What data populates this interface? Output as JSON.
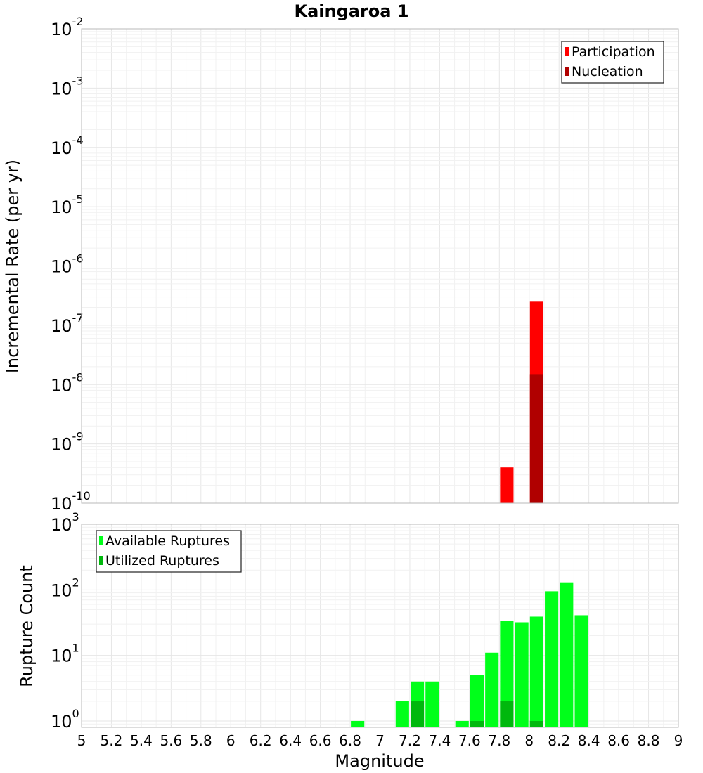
{
  "chart_data": [
    {
      "type": "bar",
      "title": "Kaingaroa 1",
      "xlabel": "",
      "ylabel": "Incremental Rate (per yr)",
      "xlim": [
        5,
        9
      ],
      "ylim": [
        1e-10,
        0.01
      ],
      "yscale": "log",
      "ytick_exponents": [
        "-10",
        "-9",
        "-8",
        "-7",
        "-6",
        "-5",
        "-4",
        "-3",
        "-2"
      ],
      "ytick_base": "10",
      "grid": true,
      "legend_position": "top-right",
      "bar_width": 0.09,
      "series": [
        {
          "name": "Participation",
          "color": "#ff0000",
          "x": [
            7.85,
            8.05
          ],
          "values": [
            4e-10,
            2.5e-07
          ]
        },
        {
          "name": "Nucleation",
          "color": "#b00000",
          "x": [
            8.05
          ],
          "values": [
            1.5e-08
          ]
        }
      ]
    },
    {
      "type": "bar",
      "title": "",
      "xlabel": "Magnitude",
      "ylabel": "Rupture Count",
      "xlim": [
        5,
        9
      ],
      "ylim": [
        0.8,
        1000
      ],
      "yscale": "log",
      "ytick_exponents": [
        "0",
        "1",
        "2",
        "3"
      ],
      "ytick_base": "10",
      "xticks": [
        "5",
        "5.2",
        "5.4",
        "5.6",
        "5.8",
        "6",
        "6.2",
        "6.4",
        "6.6",
        "6.8",
        "7",
        "7.2",
        "7.4",
        "7.6",
        "7.8",
        "8",
        "8.2",
        "8.4",
        "8.6",
        "8.8",
        "9"
      ],
      "grid": true,
      "legend_position": "top-left",
      "bar_width": 0.09,
      "series": [
        {
          "name": "Available Ruptures",
          "color": "#00ff1a",
          "x": [
            6.85,
            7.15,
            7.25,
            7.35,
            7.55,
            7.65,
            7.75,
            7.85,
            7.95,
            8.05,
            8.15,
            8.25,
            8.35
          ],
          "values": [
            1,
            2,
            4,
            4,
            1,
            5,
            11,
            34,
            32,
            39,
            95,
            130,
            41
          ]
        },
        {
          "name": "Utilized Ruptures",
          "color": "#00b80d",
          "x": [
            7.25,
            7.65,
            7.85,
            8.05
          ],
          "values": [
            2,
            1,
            2,
            1
          ]
        }
      ]
    }
  ]
}
